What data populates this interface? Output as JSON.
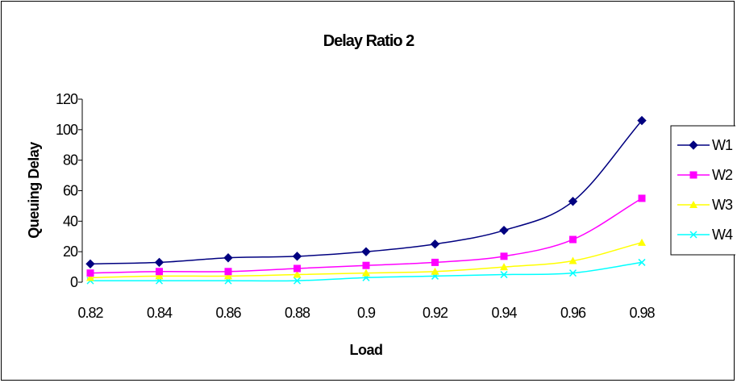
{
  "chart_data": {
    "type": "line",
    "title": "Delay Ratio 2",
    "xlabel": "Load",
    "ylabel": "Queuing Delay",
    "x": [
      0.82,
      0.84,
      0.86,
      0.88,
      0.9,
      0.92,
      0.94,
      0.96,
      0.98
    ],
    "x_tick_labels": [
      "0.82",
      "0.84",
      "0.86",
      "0.88",
      "0.9",
      "0.92",
      "0.94",
      "0.96",
      "0.98"
    ],
    "y_tick_labels": [
      "0",
      "20",
      "40",
      "60",
      "80",
      "100",
      "120"
    ],
    "ylim": [
      0,
      120
    ],
    "grid": false,
    "legend_position": "right",
    "series": [
      {
        "name": "W1",
        "color": "#000080",
        "marker": "diamond",
        "values": [
          12,
          13,
          16,
          17,
          20,
          25,
          34,
          53,
          106
        ]
      },
      {
        "name": "W2",
        "color": "#ff00ff",
        "marker": "square",
        "values": [
          6,
          7,
          7,
          9,
          11,
          13,
          17,
          28,
          55
        ]
      },
      {
        "name": "W3",
        "color": "#ffff00",
        "marker": "triangle",
        "values": [
          3,
          4,
          4,
          5,
          6,
          7,
          10,
          14,
          26
        ]
      },
      {
        "name": "W4",
        "color": "#00ffff",
        "marker": "x",
        "values": [
          1,
          1,
          1,
          1,
          3,
          4,
          5,
          6,
          13
        ]
      }
    ]
  }
}
